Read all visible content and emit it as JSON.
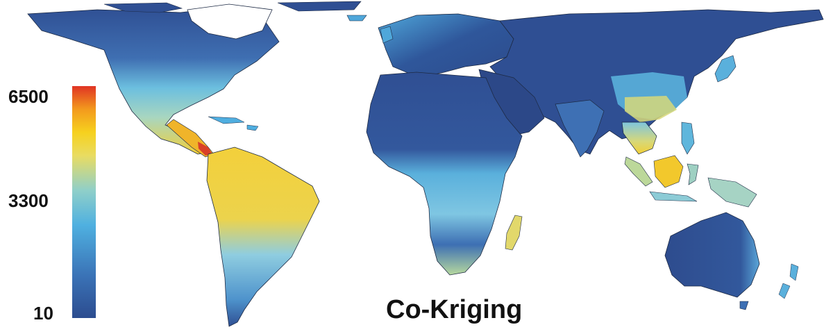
{
  "title": "Co-Kriging",
  "legend": {
    "max_label": "6500",
    "mid_label": "3300",
    "min_label": "10",
    "max_value": 6500,
    "mid_value": 3300,
    "min_value": 10,
    "gradient_stops": [
      "#2c4c8f",
      "#3a72b6",
      "#4fb0e0",
      "#8fcfc9",
      "#e9dc62",
      "#f6d11e",
      "#f39a1d",
      "#e03424"
    ]
  },
  "colors": {
    "low": "#2f4f93",
    "low_mid": "#3c78ba",
    "mid": "#5ab6e0",
    "mid_high": "#a9d7b4",
    "high": "#f2d23a",
    "very_high": "#e35a22",
    "border": "#1d2a44"
  }
}
